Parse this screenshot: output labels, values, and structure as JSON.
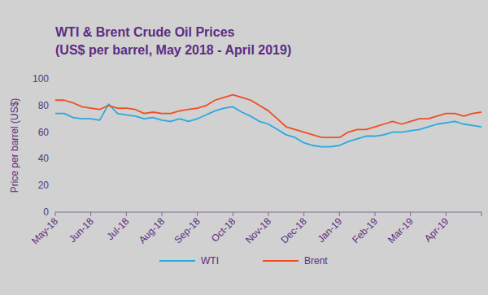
{
  "chart_data": {
    "type": "line",
    "title": "WTI & Brent Crude Oil Prices",
    "subtitle": "(US$ per barrel, May 2018 - April 2019)",
    "y_label": "Price per barrel (US$)",
    "categories": [
      "May-18",
      null,
      null,
      null,
      "Jun-18",
      null,
      null,
      null,
      "Jul-18",
      null,
      null,
      null,
      "Aug-18",
      null,
      null,
      null,
      "Sep-18",
      null,
      null,
      null,
      "Oct-18",
      null,
      null,
      null,
      "Nov-18",
      null,
      null,
      null,
      "Dec-18",
      null,
      null,
      null,
      "Jan-19",
      null,
      null,
      null,
      "Feb-19",
      null,
      null,
      null,
      "Mar-19",
      null,
      null,
      null,
      "Apr-19",
      null,
      null,
      null,
      null
    ],
    "series": [
      {
        "name": "WTI",
        "color": "#29a9e1",
        "values": [
          74,
          74,
          71,
          70,
          70,
          69,
          81,
          74,
          73,
          72,
          70,
          71,
          69,
          68,
          70,
          68,
          70,
          73,
          76,
          78,
          79,
          75,
          72,
          68,
          66,
          62,
          58,
          56,
          52,
          50,
          49,
          49,
          50,
          53,
          55,
          57,
          57,
          58,
          60,
          60,
          61,
          62,
          64,
          66,
          67,
          68,
          66,
          65,
          64
        ]
      },
      {
        "name": "Brent",
        "color": "#f04e23",
        "values": [
          84,
          84,
          82,
          79,
          78,
          77,
          80,
          78,
          78,
          77,
          74,
          75,
          74,
          74,
          76,
          77,
          78,
          80,
          84,
          86,
          88,
          86,
          84,
          80,
          76,
          70,
          64,
          62,
          60,
          58,
          56,
          56,
          56,
          60,
          62,
          62,
          64,
          66,
          68,
          66,
          68,
          70,
          70,
          72,
          74,
          74,
          72,
          74,
          75
        ]
      }
    ],
    "ylim": [
      0,
      100
    ],
    "yticks": [
      0,
      20,
      40,
      60,
      80,
      100
    ],
    "grid": false,
    "legend": "bottom"
  }
}
